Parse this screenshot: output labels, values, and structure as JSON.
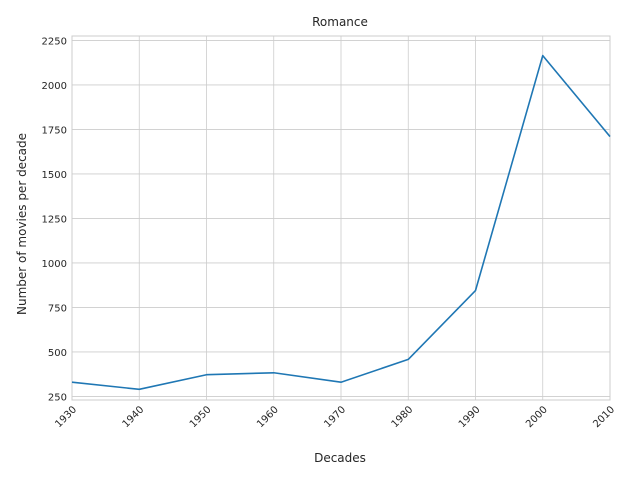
{
  "chart_data": {
    "type": "line",
    "title": "Romance",
    "xlabel": "Decades",
    "ylabel": "Number of movies per decade",
    "x": [
      1930,
      1940,
      1950,
      1960,
      1970,
      1980,
      1990,
      2000,
      2010
    ],
    "x_tick_labels": [
      "1930",
      "1940",
      "1950",
      "1960",
      "1970",
      "1980",
      "1990",
      "2000",
      "2010"
    ],
    "series": [
      {
        "values": [
          330,
          290,
          372,
          383,
          330,
          458,
          845,
          2165,
          1710
        ]
      }
    ],
    "y_ticks": [
      250,
      500,
      750,
      1000,
      1250,
      1500,
      1750,
      2000,
      2250
    ],
    "y_tick_labels": [
      "250",
      "500",
      "750",
      "1000",
      "1250",
      "1500",
      "1750",
      "2000",
      "2250"
    ],
    "xlim": [
      1930,
      2010
    ],
    "ylim": [
      230,
      2275
    ],
    "grid": true,
    "line_color": "#1f77b4"
  }
}
